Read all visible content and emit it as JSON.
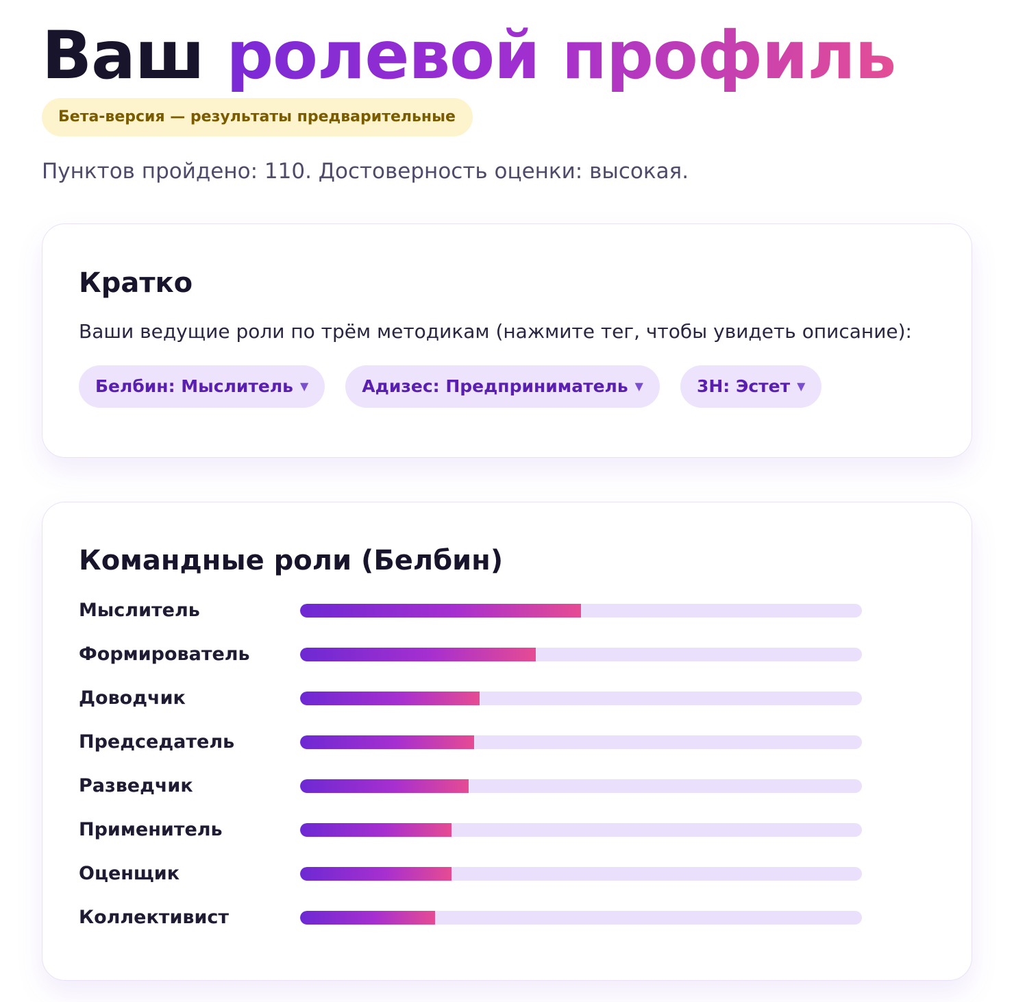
{
  "header": {
    "title_plain": "Ваш",
    "title_accent": "ролевой профиль",
    "beta_badge": "Бета-версия — результаты предварительные",
    "meta": "Пунктов пройдено: 110. Достоверность оценки: высокая."
  },
  "summary": {
    "title": "Кратко",
    "intro": "Ваши ведущие роли по трём методикам (нажмите тег, чтобы увидеть описание):",
    "tags": [
      {
        "label": "Белбин: Мыслитель",
        "icon": "chevron-down-icon"
      },
      {
        "label": "Адизес: Предприниматель",
        "icon": "chevron-down-icon"
      },
      {
        "label": "3Н: Эстет",
        "icon": "chevron-down-icon"
      }
    ]
  },
  "belbin": {
    "title": "Командные роли (Белбин)",
    "roles": [
      {
        "label": "Мыслитель",
        "level": 0.5
      },
      {
        "label": "Формирователь",
        "level": 0.42
      },
      {
        "label": "Доводчик",
        "level": 0.32
      },
      {
        "label": "Председатель",
        "level": 0.31
      },
      {
        "label": "Разведчик",
        "level": 0.3
      },
      {
        "label": "Применитель",
        "level": 0.27
      },
      {
        "label": "Оценщик",
        "level": 0.27
      },
      {
        "label": "Коллективист",
        "level": 0.24
      }
    ]
  },
  "colors": {
    "accent_start": "#6d29d2",
    "accent_mid": "#a62fd0",
    "accent_end": "#e64b93",
    "tag_bg": "#ede3fd",
    "track_bg": "#ebe0fb",
    "beta_bg": "#fdf3cc",
    "beta_text": "#7a5b00"
  }
}
